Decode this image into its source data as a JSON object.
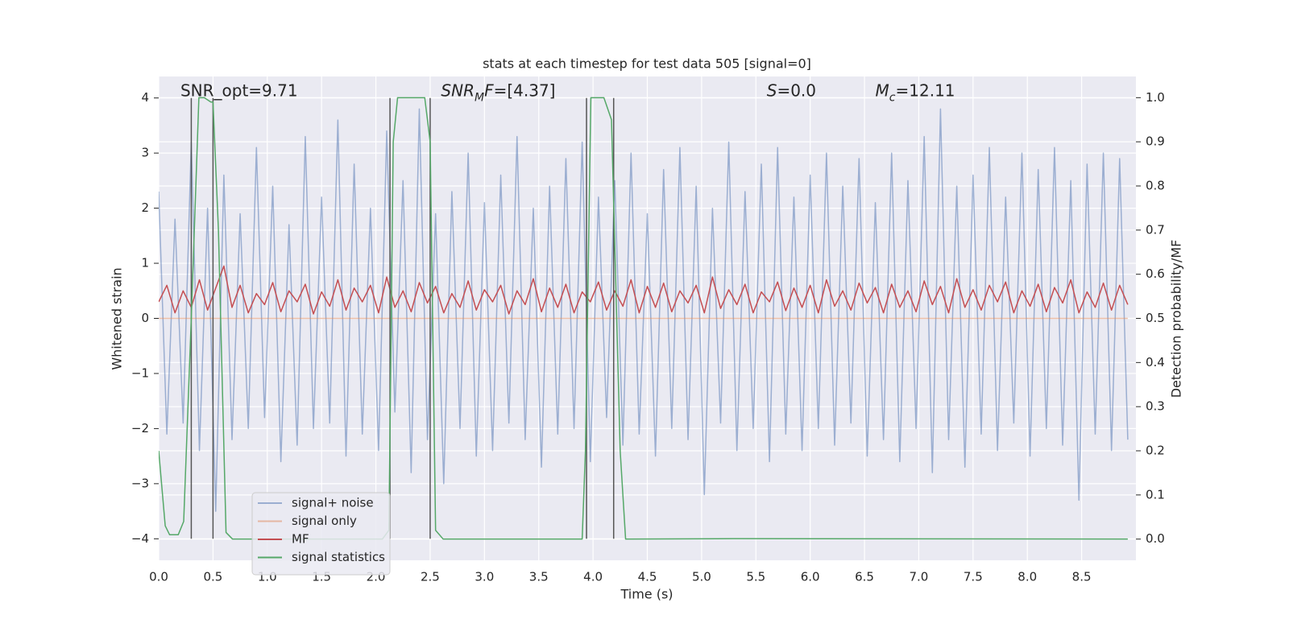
{
  "chart_data": {
    "type": "line",
    "title": "stats at each timestep for test data 505 [signal=0]",
    "xlabel": "Time (s)",
    "ylabel": "Whitened strain",
    "y2label": "Detection probability/MF",
    "xlim": [
      0,
      9.0
    ],
    "ylim": [
      -4.39,
      4.39
    ],
    "y2lim": [
      -0.048,
      1.048
    ],
    "xticks": [
      {
        "value": 0,
        "label": "0.0"
      },
      0.5,
      {
        "value": 1,
        "label": "1.0"
      },
      1.5,
      {
        "value": 2,
        "label": "2.0"
      },
      2.5,
      {
        "value": 3,
        "label": "3.0"
      },
      3.5,
      {
        "value": 4,
        "label": "4.0"
      },
      4.5,
      {
        "value": 5,
        "label": "5.0"
      },
      5.5,
      {
        "value": 6,
        "label": "6.0"
      },
      6.5,
      {
        "value": 7,
        "label": "7.0"
      },
      7.5,
      {
        "value": 8,
        "label": "8.0"
      },
      8.5
    ],
    "yticks": [
      {
        "value": -4,
        "label": "−4"
      },
      {
        "value": -3,
        "label": "−3"
      },
      {
        "value": -2,
        "label": "−2"
      },
      {
        "value": -1,
        "label": "−1"
      },
      0,
      1,
      2,
      3,
      4
    ],
    "y2ticks": [
      {
        "value": 0,
        "label": "0.0"
      },
      0.1,
      0.2,
      0.3,
      0.4,
      0.5,
      0.6,
      0.7,
      0.8,
      0.9,
      {
        "value": 1,
        "label": "1.0"
      }
    ],
    "grid": true,
    "legend": "best",
    "vline_color": "#555555",
    "vlines": [
      0.3,
      0.5,
      2.13,
      2.5,
      3.94,
      4.19
    ],
    "annotations": [
      {
        "x": 0.2,
        "y": 4.12,
        "runs": [
          {
            "t": "SNR_opt=9.71"
          }
        ]
      },
      {
        "x": 2.6,
        "y": 4.12,
        "runs": [
          {
            "t": "SNR",
            "i": true
          },
          {
            "t": "M",
            "i": true,
            "sub": true
          },
          {
            "t": "F",
            "i": true
          },
          {
            "t": "=[4.37]"
          }
        ]
      },
      {
        "x": 5.6,
        "y": 4.12,
        "runs": [
          {
            "t": "S",
            "i": true
          },
          {
            "t": "=0.0"
          }
        ]
      },
      {
        "x": 6.6,
        "y": 4.12,
        "runs": [
          {
            "t": "M",
            "i": true
          },
          {
            "t": "c",
            "i": true,
            "sub": true
          },
          {
            "t": "=12.11"
          }
        ]
      }
    ],
    "x": [
      0,
      0.075,
      0.15,
      0.225,
      0.3,
      0.375,
      0.45,
      0.525,
      0.6,
      0.675,
      0.75,
      0.825,
      0.9,
      0.975,
      1.05,
      1.125,
      1.2,
      1.275,
      1.35,
      1.425,
      1.5,
      1.575,
      1.65,
      1.725,
      1.8,
      1.875,
      1.95,
      2.025,
      2.1,
      2.175,
      2.25,
      2.325,
      2.4,
      2.475,
      2.55,
      2.625,
      2.7,
      2.775,
      2.85,
      2.925,
      3,
      3.075,
      3.15,
      3.225,
      3.3,
      3.375,
      3.45,
      3.525,
      3.6,
      3.675,
      3.75,
      3.825,
      3.9,
      3.975,
      4.05,
      4.125,
      4.2,
      4.275,
      4.35,
      4.425,
      4.5,
      4.575,
      4.65,
      4.725,
      4.8,
      4.875,
      4.95,
      5.025,
      5.1,
      5.175,
      5.25,
      5.325,
      5.4,
      5.475,
      5.55,
      5.625,
      5.7,
      5.775,
      5.85,
      5.925,
      6,
      6.075,
      6.15,
      6.225,
      6.3,
      6.375,
      6.45,
      6.525,
      6.6,
      6.675,
      6.75,
      6.825,
      6.9,
      6.975,
      7.05,
      7.125,
      7.2,
      7.275,
      7.35,
      7.425,
      7.5,
      7.575,
      7.65,
      7.725,
      7.8,
      7.875,
      7.95,
      8.025,
      8.1,
      8.175,
      8.25,
      8.325,
      8.4,
      8.475,
      8.55,
      8.625,
      8.7,
      8.775,
      8.85,
      8.925
    ],
    "series": [
      {
        "name": "signal+ noise",
        "color": "#4c72b0",
        "opacity": 0.5,
        "values": [
          2.3,
          -2.1,
          1.8,
          -1.9,
          3.2,
          -2.4,
          2.0,
          -3.5,
          2.6,
          -2.2,
          1.9,
          -2.0,
          3.1,
          -1.8,
          2.4,
          -2.6,
          1.7,
          -2.3,
          3.3,
          -2.0,
          2.2,
          -1.9,
          3.6,
          -2.5,
          2.8,
          -2.1,
          2.0,
          -2.4,
          3.4,
          -1.7,
          2.5,
          -2.8,
          3.8,
          -2.2,
          1.9,
          -3.0,
          2.3,
          -2.0,
          3.0,
          -2.5,
          2.1,
          -2.4,
          2.6,
          -1.9,
          3.3,
          -2.2,
          2.0,
          -2.7,
          2.4,
          -2.1,
          2.9,
          -2.0,
          3.2,
          -2.6,
          2.2,
          -1.8,
          2.5,
          -2.3,
          3.0,
          -2.1,
          1.9,
          -2.5,
          2.7,
          -2.0,
          3.1,
          -2.2,
          2.4,
          -3.2,
          2.0,
          -1.9,
          3.2,
          -2.4,
          2.3,
          -2.0,
          2.8,
          -2.6,
          3.1,
          -2.1,
          2.2,
          -2.4,
          2.6,
          -2.0,
          3.0,
          -2.3,
          2.4,
          -1.9,
          2.9,
          -2.5,
          2.1,
          -2.2,
          3.0,
          -2.6,
          2.5,
          -2.0,
          3.3,
          -2.8,
          3.8,
          -2.2,
          2.4,
          -2.7,
          2.6,
          -2.1,
          3.1,
          -2.4,
          2.2,
          -1.9,
          3.0,
          -2.5,
          2.7,
          -2.0,
          3.1,
          -2.3,
          2.5,
          -3.3,
          2.8,
          -2.1,
          3.0,
          -2.4,
          2.9,
          -2.2
        ]
      },
      {
        "name": "signal only",
        "color": "#dd8452",
        "opacity": 0.5,
        "x": [
          0,
          8.925
        ],
        "values": [
          0,
          0
        ]
      },
      {
        "name": "MF",
        "color": "#c44e52",
        "opacity": 1,
        "values": [
          0.3,
          0.6,
          0.1,
          0.5,
          0.2,
          0.7,
          0.15,
          0.55,
          0.95,
          0.2,
          0.6,
          0.1,
          0.45,
          0.25,
          0.65,
          0.12,
          0.5,
          0.3,
          0.62,
          0.08,
          0.48,
          0.22,
          0.7,
          0.15,
          0.55,
          0.3,
          0.6,
          0.1,
          0.75,
          0.2,
          0.5,
          0.12,
          0.65,
          0.28,
          0.58,
          0.1,
          0.45,
          0.2,
          0.68,
          0.15,
          0.52,
          0.3,
          0.6,
          0.08,
          0.5,
          0.25,
          0.72,
          0.12,
          0.55,
          0.2,
          0.62,
          0.1,
          0.48,
          0.3,
          0.66,
          0.15,
          0.5,
          0.22,
          0.7,
          0.1,
          0.58,
          0.2,
          0.64,
          0.12,
          0.5,
          0.28,
          0.6,
          0.1,
          0.75,
          0.18,
          0.52,
          0.25,
          0.62,
          0.1,
          0.48,
          0.3,
          0.66,
          0.14,
          0.55,
          0.2,
          0.6,
          0.1,
          0.7,
          0.22,
          0.5,
          0.15,
          0.64,
          0.28,
          0.56,
          0.1,
          0.62,
          0.2,
          0.5,
          0.12,
          0.68,
          0.25,
          0.58,
          0.1,
          0.72,
          0.2,
          0.52,
          0.15,
          0.6,
          0.3,
          0.66,
          0.1,
          0.5,
          0.22,
          0.62,
          0.12,
          0.56,
          0.28,
          0.7,
          0.1,
          0.48,
          0.2,
          0.64,
          0.15,
          0.6,
          0.25
        ]
      },
      {
        "name": "signal statistics",
        "color": "#55a868",
        "opacity": 1,
        "axis": "y2",
        "x": [
          0,
          0.06,
          0.1,
          0.18,
          0.23,
          0.3,
          0.37,
          0.42,
          0.48,
          0.5,
          0.55,
          0.62,
          0.68,
          2.06,
          2.12,
          2.16,
          2.2,
          2.45,
          2.5,
          2.55,
          2.62,
          3.9,
          3.93,
          3.98,
          4.1,
          4.17,
          4.25,
          4.3,
          4.35,
          5.3,
          8.925
        ],
        "values": [
          0.2,
          0.03,
          0.01,
          0.01,
          0.04,
          0.5,
          1.0,
          1.0,
          0.99,
          0.99,
          0.7,
          0.015,
          0.0,
          0.0,
          0.02,
          0.9,
          1.0,
          1.0,
          0.9,
          0.02,
          0.0,
          0.0,
          0.2,
          1.0,
          1.0,
          0.95,
          0.2,
          0.0,
          0.0,
          0.001,
          0.0
        ]
      }
    ]
  }
}
